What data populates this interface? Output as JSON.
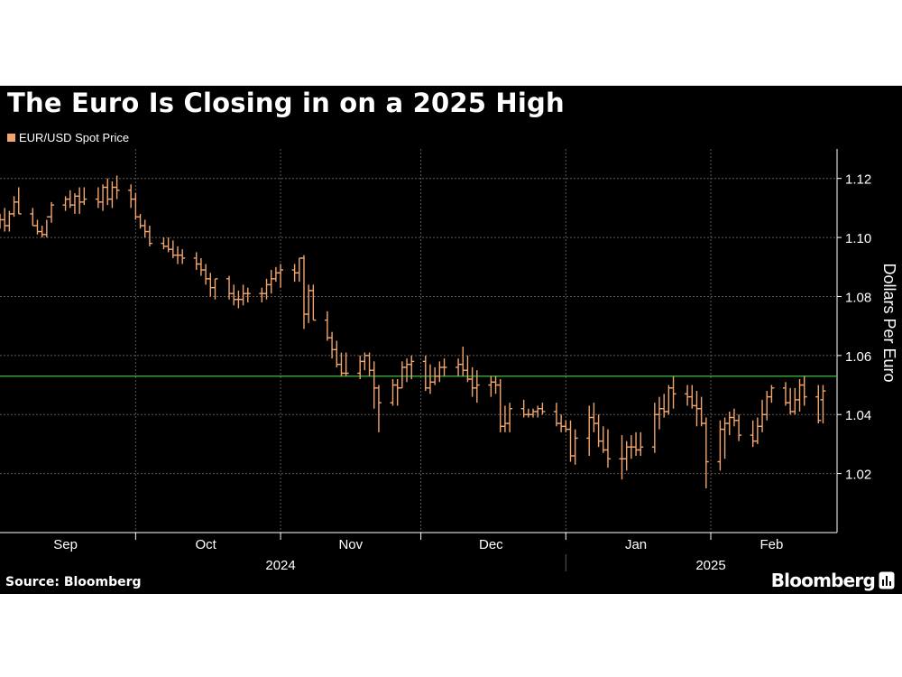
{
  "colors": {
    "background": "#000000",
    "series": "#f2a66e",
    "reference_line": "#3fbf3f",
    "grid": "#5a5a5a",
    "text": "#ffffff"
  },
  "footer": {
    "source": "Source: Bloomberg",
    "brand": "Bloomberg",
    "brand_icon": "bar-chart-icon"
  },
  "chart_data": {
    "type": "ohlc",
    "title": "The Euro Is Closing in on a 2025 High",
    "legend": [
      "EUR/USD Spot Price"
    ],
    "legend_position": "top-left",
    "ylabel": "Dollars Per Euro",
    "ylim": [
      1.0,
      1.13
    ],
    "yticks": [
      1.02,
      1.04,
      1.06,
      1.08,
      1.1,
      1.12
    ],
    "grid": true,
    "reference_line": {
      "y": 1.053
    },
    "x_start": "2024-09-02",
    "x_end": "2025-02-28",
    "month_labels": [
      {
        "label": "Sep",
        "date": "2024-09-16"
      },
      {
        "label": "Oct",
        "date": "2024-10-16"
      },
      {
        "label": "Nov",
        "date": "2024-11-16"
      },
      {
        "label": "Dec",
        "date": "2024-12-16"
      },
      {
        "label": "Jan",
        "date": "2025-01-16"
      },
      {
        "label": "Feb",
        "date": "2025-02-14"
      }
    ],
    "month_boundaries": [
      "2024-10-01",
      "2024-11-01",
      "2024-12-01",
      "2025-01-01",
      "2025-02-01"
    ],
    "year_labels": [
      {
        "label": "2024",
        "date": "2024-11-01"
      },
      {
        "label": "2025",
        "date": "2025-02-01"
      }
    ],
    "year_boundary": "2025-01-01",
    "series": [
      {
        "name": "EUR/USD Spot Price",
        "x": [
          "2024-09-02",
          "2024-09-03",
          "2024-09-04",
          "2024-09-05",
          "2024-09-06",
          "2024-09-09",
          "2024-09-10",
          "2024-09-11",
          "2024-09-12",
          "2024-09-13",
          "2024-09-16",
          "2024-09-17",
          "2024-09-18",
          "2024-09-19",
          "2024-09-20",
          "2024-09-23",
          "2024-09-24",
          "2024-09-25",
          "2024-09-26",
          "2024-09-27",
          "2024-09-30",
          "2024-10-01",
          "2024-10-02",
          "2024-10-03",
          "2024-10-04",
          "2024-10-07",
          "2024-10-08",
          "2024-10-09",
          "2024-10-10",
          "2024-10-11",
          "2024-10-14",
          "2024-10-15",
          "2024-10-16",
          "2024-10-17",
          "2024-10-18",
          "2024-10-21",
          "2024-10-22",
          "2024-10-23",
          "2024-10-24",
          "2024-10-25",
          "2024-10-28",
          "2024-10-29",
          "2024-10-30",
          "2024-10-31",
          "2024-11-01",
          "2024-11-04",
          "2024-11-05",
          "2024-11-06",
          "2024-11-07",
          "2024-11-08",
          "2024-11-11",
          "2024-11-12",
          "2024-11-13",
          "2024-11-14",
          "2024-11-15",
          "2024-11-18",
          "2024-11-19",
          "2024-11-20",
          "2024-11-21",
          "2024-11-22",
          "2024-11-25",
          "2024-11-26",
          "2024-11-27",
          "2024-11-28",
          "2024-11-29",
          "2024-12-02",
          "2024-12-03",
          "2024-12-04",
          "2024-12-05",
          "2024-12-06",
          "2024-12-09",
          "2024-12-10",
          "2024-12-11",
          "2024-12-12",
          "2024-12-13",
          "2024-12-16",
          "2024-12-17",
          "2024-12-18",
          "2024-12-19",
          "2024-12-20",
          "2024-12-23",
          "2024-12-24",
          "2024-12-25",
          "2024-12-26",
          "2024-12-27",
          "2024-12-30",
          "2024-12-31",
          "2025-01-01",
          "2025-01-02",
          "2025-01-03",
          "2025-01-06",
          "2025-01-07",
          "2025-01-08",
          "2025-01-09",
          "2025-01-10",
          "2025-01-13",
          "2025-01-14",
          "2025-01-15",
          "2025-01-16",
          "2025-01-17",
          "2025-01-20",
          "2025-01-21",
          "2025-01-22",
          "2025-01-23",
          "2025-01-24",
          "2025-01-27",
          "2025-01-28",
          "2025-01-29",
          "2025-01-30",
          "2025-01-31",
          "2025-02-03",
          "2025-02-04",
          "2025-02-05",
          "2025-02-06",
          "2025-02-07",
          "2025-02-10",
          "2025-02-11",
          "2025-02-12",
          "2025-02-13",
          "2025-02-14",
          "2025-02-17",
          "2025-02-18",
          "2025-02-19",
          "2025-02-20",
          "2025-02-21",
          "2025-02-24",
          "2025-02-25"
        ],
        "open": [
          1.105,
          1.106,
          1.104,
          1.108,
          1.112,
          1.108,
          1.104,
          1.102,
          1.101,
          1.107,
          1.111,
          1.113,
          1.111,
          1.114,
          1.112,
          1.113,
          1.112,
          1.117,
          1.113,
          1.117,
          1.116,
          1.113,
          1.107,
          1.104,
          1.102,
          1.098,
          1.097,
          1.096,
          1.094,
          1.094,
          1.093,
          1.091,
          1.089,
          1.086,
          1.083,
          1.086,
          1.081,
          1.079,
          1.079,
          1.081,
          1.081,
          1.081,
          1.084,
          1.086,
          1.088,
          1.089,
          1.088,
          1.093,
          1.074,
          1.082,
          1.072,
          1.066,
          1.062,
          1.057,
          1.054,
          1.054,
          1.058,
          1.06,
          1.055,
          1.049,
          1.044,
          1.05,
          1.049,
          1.056,
          1.057,
          1.058,
          1.049,
          1.051,
          1.053,
          1.056,
          1.056,
          1.057,
          1.055,
          1.052,
          1.049,
          1.05,
          1.051,
          1.05,
          1.036,
          1.037,
          1.042,
          1.04,
          1.04,
          1.041,
          1.042,
          1.041,
          1.037,
          1.036,
          1.035,
          1.026,
          1.032,
          1.039,
          1.037,
          1.031,
          1.028,
          1.025,
          1.025,
          1.029,
          1.029,
          1.028,
          1.029,
          1.04,
          1.042,
          1.041,
          1.049,
          1.047,
          1.046,
          1.043,
          1.042,
          1.037,
          1.024,
          1.035,
          1.037,
          1.039,
          1.038,
          1.033,
          1.031,
          1.036,
          1.04,
          1.046,
          1.049,
          1.044,
          1.041,
          1.045,
          1.05,
          1.046,
          1.045
        ],
        "high": [
          1.108,
          1.11,
          1.109,
          1.114,
          1.117,
          1.11,
          1.106,
          1.104,
          1.106,
          1.112,
          1.114,
          1.116,
          1.115,
          1.117,
          1.117,
          1.117,
          1.118,
          1.12,
          1.119,
          1.121,
          1.118,
          1.115,
          1.108,
          1.106,
          1.104,
          1.1,
          1.1,
          1.099,
          1.097,
          1.096,
          1.095,
          1.093,
          1.091,
          1.088,
          1.086,
          1.087,
          1.084,
          1.082,
          1.084,
          1.083,
          1.083,
          1.086,
          1.089,
          1.09,
          1.091,
          1.091,
          1.093,
          1.094,
          1.084,
          1.084,
          1.075,
          1.068,
          1.065,
          1.061,
          1.061,
          1.06,
          1.061,
          1.061,
          1.058,
          1.05,
          1.052,
          1.052,
          1.058,
          1.059,
          1.06,
          1.06,
          1.057,
          1.056,
          1.058,
          1.059,
          1.059,
          1.063,
          1.06,
          1.056,
          1.055,
          1.053,
          1.053,
          1.052,
          1.043,
          1.044,
          1.045,
          1.042,
          1.042,
          1.043,
          1.044,
          1.044,
          1.04,
          1.038,
          1.038,
          1.035,
          1.043,
          1.044,
          1.04,
          1.036,
          1.035,
          1.033,
          1.031,
          1.033,
          1.034,
          1.034,
          1.044,
          1.046,
          1.047,
          1.05,
          1.053,
          1.05,
          1.05,
          1.048,
          1.046,
          1.039,
          1.038,
          1.039,
          1.041,
          1.042,
          1.04,
          1.038,
          1.039,
          1.045,
          1.048,
          1.05,
          1.051,
          1.049,
          1.049,
          1.052,
          1.053,
          1.05,
          1.05
        ],
        "low": [
          1.103,
          1.102,
          1.102,
          1.107,
          1.108,
          1.104,
          1.101,
          1.1,
          1.1,
          1.105,
          1.109,
          1.11,
          1.108,
          1.108,
          1.111,
          1.11,
          1.109,
          1.111,
          1.11,
          1.113,
          1.11,
          1.106,
          1.103,
          1.1,
          1.097,
          1.096,
          1.095,
          1.093,
          1.091,
          1.091,
          1.089,
          1.087,
          1.084,
          1.08,
          1.079,
          1.079,
          1.077,
          1.076,
          1.077,
          1.078,
          1.078,
          1.079,
          1.081,
          1.085,
          1.083,
          1.085,
          1.085,
          1.069,
          1.071,
          1.072,
          1.065,
          1.059,
          1.056,
          1.053,
          1.053,
          1.052,
          1.055,
          1.053,
          1.042,
          1.034,
          1.043,
          1.043,
          1.049,
          1.051,
          1.052,
          1.048,
          1.047,
          1.05,
          1.051,
          1.053,
          1.053,
          1.053,
          1.051,
          1.046,
          1.044,
          1.046,
          1.047,
          1.034,
          1.034,
          1.034,
          1.039,
          1.039,
          1.039,
          1.039,
          1.04,
          1.036,
          1.034,
          1.034,
          1.024,
          1.023,
          1.026,
          1.034,
          1.029,
          1.027,
          1.022,
          1.018,
          1.021,
          1.025,
          1.026,
          1.026,
          1.027,
          1.035,
          1.039,
          1.04,
          1.042,
          1.043,
          1.042,
          1.036,
          1.036,
          1.015,
          1.021,
          1.025,
          1.033,
          1.036,
          1.031,
          1.029,
          1.03,
          1.034,
          1.038,
          1.044,
          1.043,
          1.04,
          1.04,
          1.041,
          1.043,
          1.037,
          1.037
        ],
        "close": [
          1.106,
          1.104,
          1.108,
          1.112,
          1.108,
          1.104,
          1.102,
          1.101,
          1.107,
          1.111,
          1.113,
          1.111,
          1.114,
          1.112,
          1.113,
          1.112,
          1.117,
          1.113,
          1.117,
          1.116,
          1.113,
          1.107,
          1.104,
          1.102,
          1.098,
          1.097,
          1.096,
          1.094,
          1.094,
          1.093,
          1.091,
          1.089,
          1.086,
          1.083,
          1.086,
          1.081,
          1.079,
          1.079,
          1.081,
          1.081,
          1.081,
          1.084,
          1.086,
          1.088,
          1.089,
          1.088,
          1.093,
          1.074,
          1.082,
          1.072,
          1.066,
          1.062,
          1.057,
          1.054,
          1.054,
          1.058,
          1.06,
          1.055,
          1.049,
          1.044,
          1.05,
          1.049,
          1.056,
          1.057,
          1.058,
          1.049,
          1.051,
          1.053,
          1.056,
          1.056,
          1.057,
          1.055,
          1.052,
          1.049,
          1.05,
          1.051,
          1.05,
          1.036,
          1.037,
          1.042,
          1.04,
          1.04,
          1.041,
          1.042,
          1.041,
          1.037,
          1.036,
          1.035,
          1.026,
          1.032,
          1.039,
          1.037,
          1.031,
          1.028,
          1.025,
          1.025,
          1.029,
          1.029,
          1.028,
          1.029,
          1.04,
          1.042,
          1.041,
          1.049,
          1.047,
          1.046,
          1.043,
          1.042,
          1.037,
          1.024,
          1.035,
          1.037,
          1.039,
          1.038,
          1.033,
          1.031,
          1.036,
          1.04,
          1.046,
          1.049,
          1.044,
          1.041,
          1.045,
          1.05,
          1.046,
          1.038,
          1.048
        ]
      }
    ]
  }
}
